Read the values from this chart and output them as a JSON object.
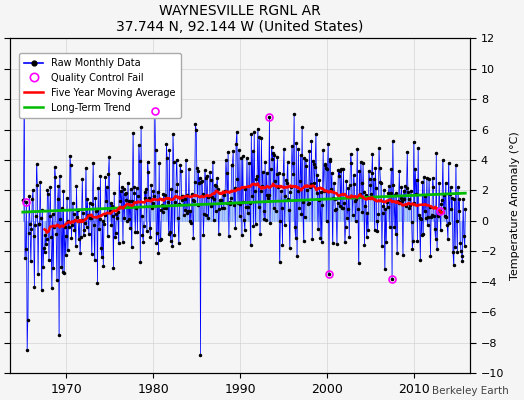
{
  "title": "WAYNESVILLE RGNL AR",
  "subtitle": "37.744 N, 92.144 W (United States)",
  "ylabel": "Temperature Anomaly (°C)",
  "credit": "Berkeley Earth",
  "xlim": [
    1963.5,
    2016.5
  ],
  "ylim": [
    -10,
    12
  ],
  "yticks": [
    -10,
    -8,
    -6,
    -4,
    -2,
    0,
    2,
    4,
    6,
    8,
    10,
    12
  ],
  "xticks": [
    1970,
    1980,
    1990,
    2000,
    2010
  ],
  "bg_color": "#f5f5f5",
  "raw_color": "#4444cc",
  "raw_line_color": "#0000ff",
  "ma_color": "#ff0000",
  "trend_color": "#00bb00",
  "qc_color": "#ff00ff",
  "grid_color": "#cccccc",
  "seed": 137,
  "start_year": 1965.0,
  "end_year": 2015.9
}
